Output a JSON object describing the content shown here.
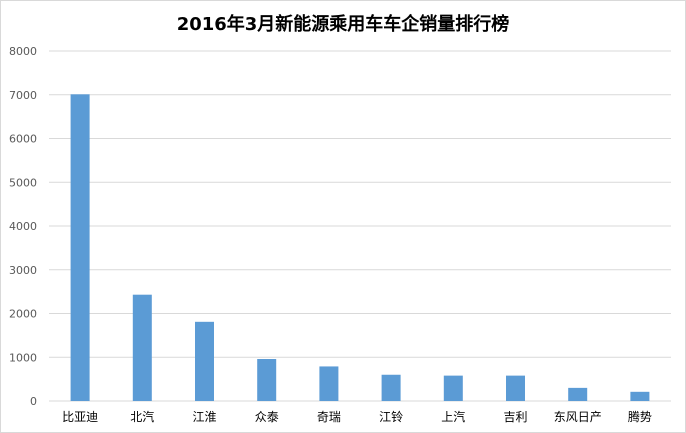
{
  "chart_data": {
    "type": "bar",
    "title": "2016年3月新能源乘用车车企销量排行榜",
    "xlabel": "",
    "ylabel": "",
    "categories": [
      "比亚迪",
      "北汽",
      "江淮",
      "众泰",
      "奇瑞",
      "江铃",
      "上汽",
      "吉利",
      "东风日产",
      "腾势"
    ],
    "values": [
      7010,
      2430,
      1810,
      960,
      790,
      600,
      580,
      580,
      300,
      210
    ],
    "ylim": [
      0,
      8000
    ],
    "yticks": [
      0,
      1000,
      2000,
      3000,
      4000,
      5000,
      6000,
      7000,
      8000
    ],
    "grid": true,
    "legend": "none",
    "bar_color": "#5B9BD5",
    "grid_color": "#d9d9d9"
  }
}
